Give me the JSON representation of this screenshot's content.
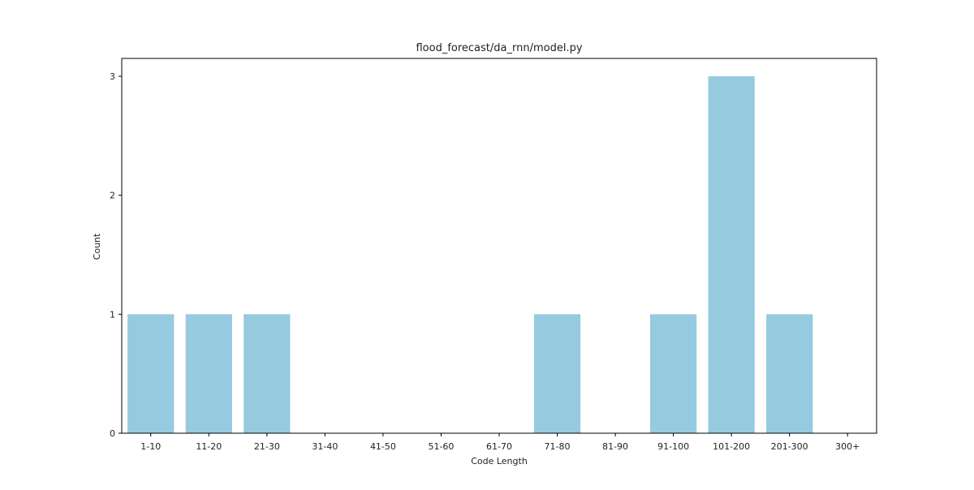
{
  "chart_data": {
    "type": "bar",
    "title": "flood_forecast/da_rnn/model.py",
    "xlabel": "Code Length",
    "ylabel": "Count",
    "categories": [
      "1-10",
      "11-20",
      "21-30",
      "31-40",
      "41-50",
      "51-60",
      "61-70",
      "71-80",
      "81-90",
      "91-100",
      "101-200",
      "201-300",
      "300+"
    ],
    "values": [
      1,
      1,
      1,
      0,
      0,
      0,
      0,
      1,
      0,
      1,
      3,
      1,
      0
    ],
    "yticks": [
      "0",
      "1",
      "2",
      "3"
    ],
    "ylim": [
      0,
      3.15
    ],
    "grid": false,
    "legend": "none",
    "bar_color": "#96cadf",
    "axis_color": "#000000"
  }
}
